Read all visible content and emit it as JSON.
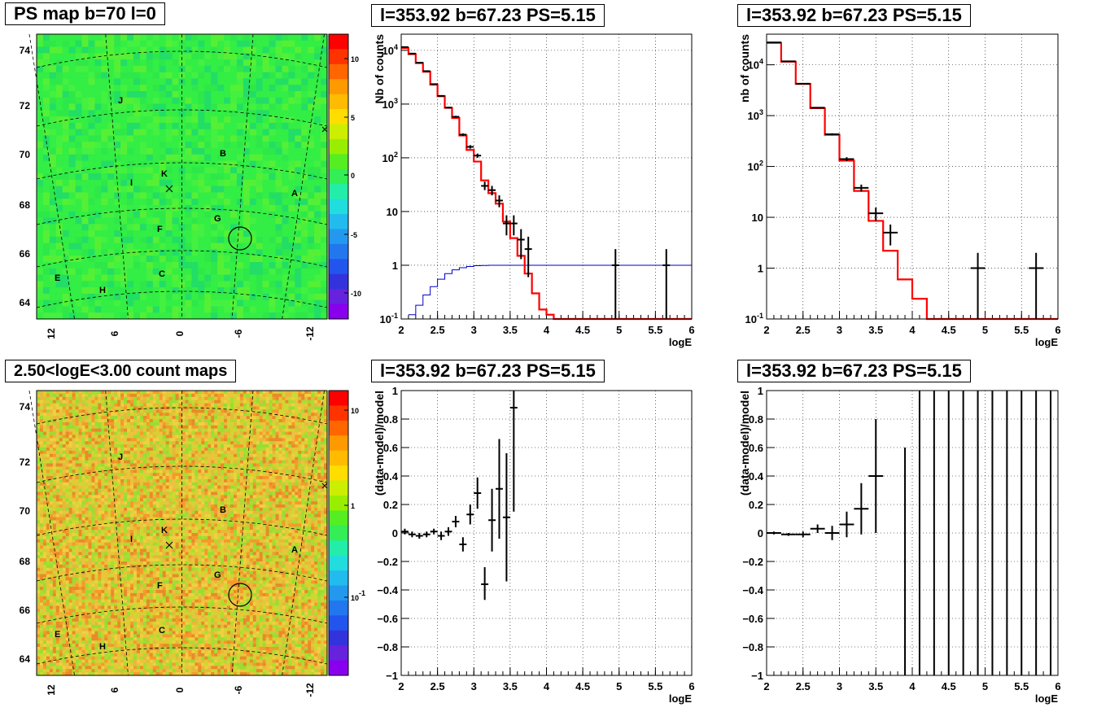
{
  "titles": {
    "map_top": "PS map b=70 l=0",
    "map_bottom": "2.50<logE<3.00 count maps",
    "spec_a": "l=353.92 b=67.23 PS=5.15",
    "spec_b": "l=353.92 b=67.23 PS=5.15",
    "res_a": "l=353.92 b=67.23 PS=5.15",
    "res_b": "l=353.92 b=67.23 PS=5.15"
  },
  "maps": {
    "y_ticks": [
      "74",
      "72",
      "70",
      "68",
      "66",
      "64"
    ],
    "x_ticks": [
      "12",
      "6",
      "0",
      "-6",
      "-12"
    ],
    "source_labels": [
      "J",
      "B",
      "K",
      "I",
      "A",
      "G",
      "F",
      "C",
      "E",
      "H"
    ],
    "top_colorbar_ticks": [
      "10",
      "5",
      "0",
      "-5",
      "-10"
    ],
    "bottom_colorbar_ticks": [
      "10",
      "1",
      "10-1"
    ]
  },
  "chart_data": [
    {
      "type": "line",
      "id": "spec_a",
      "title": "l=353.92 b=67.23 PS=5.15",
      "xlabel": "logE",
      "ylabel": "Nb of counts",
      "xlim": [
        2,
        6
      ],
      "ylim": [
        0.1,
        20000
      ],
      "log_y": true,
      "grid": true,
      "x_ticks": [
        2,
        2.5,
        3,
        3.5,
        4,
        4.5,
        5,
        5.5,
        6
      ],
      "y_ticks": [
        {
          "v": 0.1,
          "l": "10-1"
        },
        {
          "v": 1,
          "l": "1"
        },
        {
          "v": 10,
          "l": "10"
        },
        {
          "v": 100,
          "l": "102"
        },
        {
          "v": 1000,
          "l": "103"
        },
        {
          "v": 10000,
          "l": "104"
        }
      ],
      "model_edges": [
        2,
        2.1,
        2.2,
        2.3,
        2.4,
        2.5,
        2.6,
        2.7,
        2.8,
        2.9,
        3.0,
        3.1,
        3.2,
        3.3,
        3.4,
        3.5,
        3.6,
        3.7,
        3.8,
        3.9,
        4.0,
        4.1,
        6.0
      ],
      "model_values": [
        11000,
        8500,
        5800,
        4000,
        2300,
        1400,
        850,
        550,
        260,
        140,
        85,
        38,
        22,
        14,
        6.5,
        3.2,
        1.5,
        0.7,
        0.3,
        0.15,
        0.12,
        0.1
      ],
      "background_edges": [
        2.1,
        2.2,
        2.3,
        2.4,
        2.5,
        2.6,
        2.7,
        2.8,
        2.9,
        3.0,
        3.1,
        3.2,
        3.3,
        3.4,
        3.5,
        3.6,
        6.0
      ],
      "background_values": [
        0.12,
        0.18,
        0.28,
        0.4,
        0.55,
        0.7,
        0.82,
        0.9,
        0.95,
        0.98,
        0.99,
        1,
        1,
        1,
        1,
        1
      ],
      "points": [
        {
          "x": 2.05,
          "y": 11500,
          "xe": 0.05,
          "lo": 11300,
          "hi": 11700
        },
        {
          "x": 2.15,
          "y": 8700,
          "xe": 0.05,
          "lo": 8500,
          "hi": 8900
        },
        {
          "x": 2.25,
          "y": 5900,
          "xe": 0.05,
          "lo": 5750,
          "hi": 6050
        },
        {
          "x": 2.35,
          "y": 4100,
          "xe": 0.05,
          "lo": 4000,
          "hi": 4200
        },
        {
          "x": 2.45,
          "y": 2350,
          "xe": 0.05,
          "lo": 2300,
          "hi": 2400
        },
        {
          "x": 2.55,
          "y": 1420,
          "xe": 0.05,
          "lo": 1380,
          "hi": 1460
        },
        {
          "x": 2.65,
          "y": 860,
          "xe": 0.05,
          "lo": 830,
          "hi": 890
        },
        {
          "x": 2.75,
          "y": 580,
          "xe": 0.05,
          "lo": 555,
          "hi": 605
        },
        {
          "x": 2.85,
          "y": 270,
          "xe": 0.05,
          "lo": 255,
          "hi": 285
        },
        {
          "x": 2.95,
          "y": 160,
          "xe": 0.05,
          "lo": 148,
          "hi": 172
        },
        {
          "x": 3.05,
          "y": 110,
          "xe": 0.05,
          "lo": 100,
          "hi": 120
        },
        {
          "x": 3.15,
          "y": 30,
          "xe": 0.05,
          "lo": 25,
          "hi": 36
        },
        {
          "x": 3.25,
          "y": 25,
          "xe": 0.05,
          "lo": 20,
          "hi": 30
        },
        {
          "x": 3.35,
          "y": 16,
          "xe": 0.05,
          "lo": 12,
          "hi": 20
        },
        {
          "x": 3.45,
          "y": 6,
          "xe": 0.05,
          "lo": 3.6,
          "hi": 8.5
        },
        {
          "x": 3.55,
          "y": 6,
          "xe": 0.05,
          "lo": 3.6,
          "hi": 8.5
        },
        {
          "x": 3.65,
          "y": 3,
          "xe": 0.05,
          "lo": 1.3,
          "hi": 4.7
        },
        {
          "x": 3.75,
          "y": 2,
          "xe": 0.05,
          "lo": 0.6,
          "hi": 3.4
        },
        {
          "x": 4.95,
          "y": 1,
          "xe": 0.05,
          "lo": 0.1,
          "hi": 2
        },
        {
          "x": 5.65,
          "y": 1,
          "xe": 0.05,
          "lo": 0.1,
          "hi": 2
        }
      ]
    },
    {
      "type": "line",
      "id": "spec_b",
      "title": "l=353.92 b=67.23 PS=5.15",
      "xlabel": "logE",
      "ylabel": "nb of counts",
      "xlim": [
        2,
        6
      ],
      "ylim": [
        0.1,
        40000
      ],
      "log_y": true,
      "grid": true,
      "x_ticks": [
        2,
        2.5,
        3,
        3.5,
        4,
        4.5,
        5,
        5.5,
        6
      ],
      "y_ticks": [
        {
          "v": 0.1,
          "l": "10-1"
        },
        {
          "v": 1,
          "l": "1"
        },
        {
          "v": 10,
          "l": "10"
        },
        {
          "v": 100,
          "l": "102"
        },
        {
          "v": 1000,
          "l": "103"
        },
        {
          "v": 10000,
          "l": "104"
        }
      ],
      "model_edges": [
        2,
        2.2,
        2.4,
        2.6,
        2.8,
        3.0,
        3.2,
        3.4,
        3.6,
        3.8,
        4.0,
        4.2,
        6.0
      ],
      "model_values": [
        27000,
        11500,
        4200,
        1400,
        420,
        130,
        33,
        8.5,
        2.2,
        0.6,
        0.25,
        0.1
      ],
      "points": [
        {
          "x": 2.1,
          "y": 27500,
          "xe": 0.1,
          "lo": 27000,
          "hi": 28000
        },
        {
          "x": 2.3,
          "y": 11700,
          "xe": 0.1,
          "lo": 11500,
          "hi": 11900
        },
        {
          "x": 2.5,
          "y": 4250,
          "xe": 0.1,
          "lo": 4150,
          "hi": 4350
        },
        {
          "x": 2.7,
          "y": 1430,
          "xe": 0.1,
          "lo": 1390,
          "hi": 1470
        },
        {
          "x": 2.9,
          "y": 430,
          "xe": 0.1,
          "lo": 410,
          "hi": 450
        },
        {
          "x": 3.1,
          "y": 140,
          "xe": 0.1,
          "lo": 128,
          "hi": 152
        },
        {
          "x": 3.3,
          "y": 38,
          "xe": 0.1,
          "lo": 32,
          "hi": 44
        },
        {
          "x": 3.5,
          "y": 12,
          "xe": 0.1,
          "lo": 8.5,
          "hi": 15.5
        },
        {
          "x": 3.7,
          "y": 5,
          "xe": 0.1,
          "lo": 2.8,
          "hi": 7.2
        },
        {
          "x": 4.9,
          "y": 1,
          "xe": 0.1,
          "lo": 0.1,
          "hi": 2
        },
        {
          "x": 5.7,
          "y": 1,
          "xe": 0.1,
          "lo": 0.1,
          "hi": 2
        }
      ]
    },
    {
      "type": "scatter",
      "id": "res_a",
      "title": "l=353.92 b=67.23 PS=5.15",
      "xlabel": "logE",
      "ylabel": "(data-model)/model",
      "xlim": [
        2,
        6
      ],
      "ylim": [
        -1,
        1
      ],
      "grid": true,
      "x_ticks": [
        2,
        2.5,
        3,
        3.5,
        4,
        4.5,
        5,
        5.5,
        6
      ],
      "y_ticks": [
        -1,
        -0.8,
        -0.6,
        -0.4,
        -0.2,
        0,
        0.2,
        0.4,
        0.6,
        0.8,
        1
      ],
      "points": [
        {
          "x": 2.05,
          "y": 0.01,
          "xe": 0.05,
          "lo": -0.01,
          "hi": 0.03
        },
        {
          "x": 2.15,
          "y": -0.01,
          "xe": 0.05,
          "lo": -0.03,
          "hi": 0.01
        },
        {
          "x": 2.25,
          "y": -0.02,
          "xe": 0.05,
          "lo": -0.04,
          "hi": 0.0
        },
        {
          "x": 2.35,
          "y": -0.01,
          "xe": 0.05,
          "lo": -0.03,
          "hi": 0.01
        },
        {
          "x": 2.45,
          "y": 0.01,
          "xe": 0.05,
          "lo": -0.01,
          "hi": 0.03
        },
        {
          "x": 2.55,
          "y": -0.02,
          "xe": 0.05,
          "lo": -0.05,
          "hi": 0.01
        },
        {
          "x": 2.65,
          "y": 0.01,
          "xe": 0.05,
          "lo": -0.02,
          "hi": 0.04
        },
        {
          "x": 2.75,
          "y": 0.08,
          "xe": 0.05,
          "lo": 0.04,
          "hi": 0.12
        },
        {
          "x": 2.85,
          "y": -0.08,
          "xe": 0.05,
          "lo": -0.13,
          "hi": -0.03
        },
        {
          "x": 2.95,
          "y": 0.13,
          "xe": 0.05,
          "lo": 0.06,
          "hi": 0.2
        },
        {
          "x": 3.05,
          "y": 0.28,
          "xe": 0.05,
          "lo": 0.17,
          "hi": 0.39
        },
        {
          "x": 3.15,
          "y": -0.36,
          "xe": 0.05,
          "lo": -0.47,
          "hi": -0.24
        },
        {
          "x": 3.25,
          "y": 0.09,
          "xe": 0.05,
          "lo": -0.13,
          "hi": 0.31
        },
        {
          "x": 3.35,
          "y": 0.31,
          "xe": 0.05,
          "lo": -0.04,
          "hi": 0.66
        },
        {
          "x": 3.45,
          "y": 0.11,
          "xe": 0.05,
          "lo": -0.34,
          "hi": 0.56
        },
        {
          "x": 3.55,
          "y": 0.88,
          "xe": 0.05,
          "lo": 0.15,
          "hi": 1.0
        }
      ]
    },
    {
      "type": "scatter",
      "id": "res_b",
      "title": "l=353.92 b=67.23 PS=5.15",
      "xlabel": "logE",
      "ylabel": "(data-model)/model",
      "xlim": [
        2,
        6
      ],
      "ylim": [
        -1,
        1
      ],
      "grid": true,
      "x_ticks": [
        2,
        2.5,
        3,
        3.5,
        4,
        4.5,
        5,
        5.5,
        6
      ],
      "y_ticks": [
        -1,
        -0.8,
        -0.6,
        -0.4,
        -0.2,
        0,
        0.2,
        0.4,
        0.6,
        0.8,
        1
      ],
      "points": [
        {
          "x": 2.1,
          "y": 0.0,
          "xe": 0.1,
          "lo": -0.01,
          "hi": 0.01
        },
        {
          "x": 2.3,
          "y": -0.01,
          "xe": 0.1,
          "lo": -0.02,
          "hi": 0.0
        },
        {
          "x": 2.5,
          "y": -0.01,
          "xe": 0.1,
          "lo": -0.03,
          "hi": 0.01
        },
        {
          "x": 2.7,
          "y": 0.03,
          "xe": 0.1,
          "lo": 0.0,
          "hi": 0.06
        },
        {
          "x": 2.9,
          "y": 0.0,
          "xe": 0.1,
          "lo": -0.05,
          "hi": 0.05
        },
        {
          "x": 3.1,
          "y": 0.06,
          "xe": 0.1,
          "lo": -0.03,
          "hi": 0.15
        },
        {
          "x": 3.3,
          "y": 0.17,
          "xe": 0.1,
          "lo": -0.01,
          "hi": 0.35
        },
        {
          "x": 3.5,
          "y": 0.4,
          "xe": 0.1,
          "lo": 0.0,
          "hi": 0.8
        },
        {
          "x": 3.9,
          "y": -1.0,
          "xe": 0.0,
          "lo": -1.0,
          "hi": 0.6
        },
        {
          "x": 4.1,
          "y": -1.0,
          "xe": 0.0,
          "lo": -1.0,
          "hi": 1.0
        },
        {
          "x": 4.3,
          "y": -1.0,
          "xe": 0.0,
          "lo": -1.0,
          "hi": 1.0
        },
        {
          "x": 4.5,
          "y": -1.0,
          "xe": 0.0,
          "lo": -1.0,
          "hi": 1.0
        },
        {
          "x": 4.7,
          "y": -1.0,
          "xe": 0.0,
          "lo": -1.0,
          "hi": 1.0
        },
        {
          "x": 4.9,
          "y": -1.0,
          "xe": 0.0,
          "lo": -1.0,
          "hi": 1.0
        },
        {
          "x": 5.1,
          "y": -1.0,
          "xe": 0.0,
          "lo": -1.0,
          "hi": 1.0
        },
        {
          "x": 5.3,
          "y": -1.0,
          "xe": 0.0,
          "lo": -1.0,
          "hi": 1.0
        },
        {
          "x": 5.5,
          "y": -1.0,
          "xe": 0.0,
          "lo": -1.0,
          "hi": 1.0
        },
        {
          "x": 5.7,
          "y": -1.0,
          "xe": 0.0,
          "lo": -1.0,
          "hi": 1.0
        },
        {
          "x": 5.9,
          "y": -1.0,
          "xe": 0.0,
          "lo": -1.0,
          "hi": 1.0
        }
      ]
    }
  ],
  "colors": {
    "model": "#ff0000",
    "background_model": "#0000cc",
    "data": "#000000",
    "map_top_base": "#33ee44",
    "grid": "#000000"
  }
}
